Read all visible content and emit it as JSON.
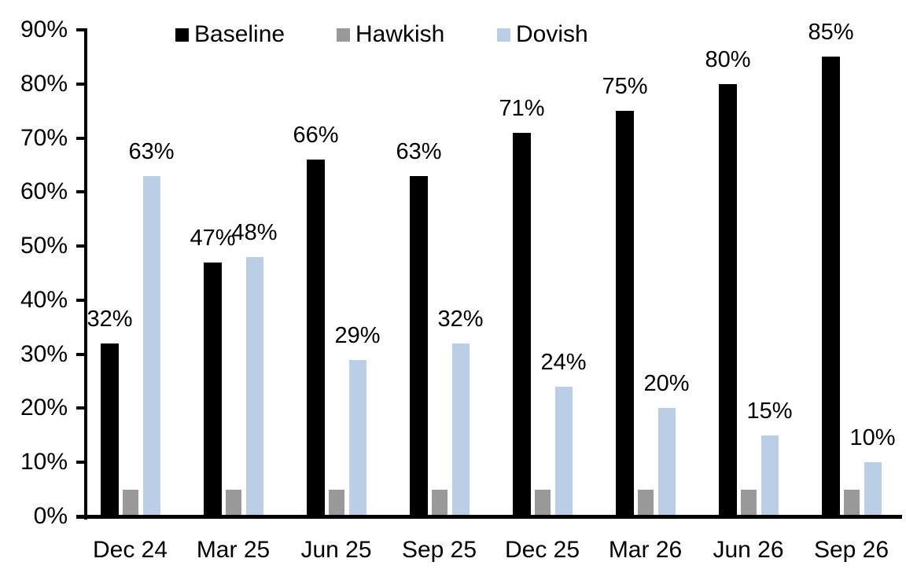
{
  "chart_data": {
    "type": "bar",
    "title": "",
    "categories": [
      "Dec 24",
      "Mar 25",
      "Jun 25",
      "Sep 25",
      "Dec 25",
      "Mar 26",
      "Jun 26",
      "Sep 26"
    ],
    "series": [
      {
        "name": "Baseline",
        "color": "#000000",
        "values": [
          32,
          47,
          66,
          63,
          71,
          75,
          80,
          85
        ],
        "data_labels": [
          "32%",
          "47%",
          "66%",
          "63%",
          "71%",
          "75%",
          "80%",
          "85%"
        ]
      },
      {
        "name": "Hawkish",
        "color": "#999999",
        "values": [
          5,
          5,
          5,
          5,
          5,
          5,
          5,
          5
        ],
        "data_labels": [
          "",
          "",
          "",
          "",
          "",
          "",
          "",
          ""
        ]
      },
      {
        "name": "Dovish",
        "color": "#BACFE6",
        "values": [
          63,
          48,
          29,
          32,
          24,
          20,
          15,
          10
        ],
        "data_labels": [
          "63%",
          "48%",
          "29%",
          "32%",
          "24%",
          "20%",
          "15%",
          "10%"
        ]
      }
    ],
    "ylim": [
      0,
      90
    ],
    "y_tick_labels": [
      "0%",
      "10%",
      "20%",
      "30%",
      "40%",
      "50%",
      "60%",
      "70%",
      "80%",
      "90%"
    ],
    "grid": false,
    "legend_position": "top",
    "axis_color": "#000000",
    "text_color": "#000000",
    "background_color": "#FFFFFF"
  }
}
